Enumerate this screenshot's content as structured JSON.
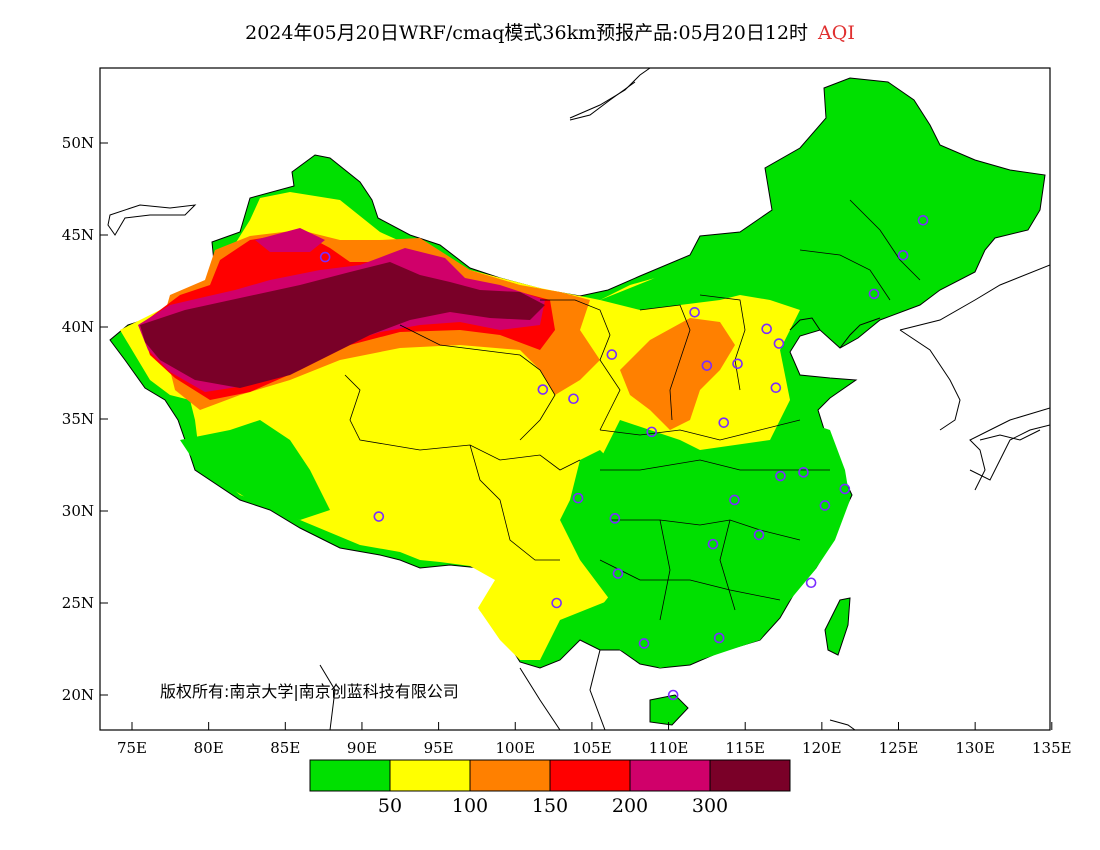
{
  "title": {
    "text": "2024年05月20日WRF/cmaq模式36km预报产品:05月20日12时",
    "variable": "AQI"
  },
  "axes": {
    "x_ticks": [
      "75E",
      "80E",
      "85E",
      "90E",
      "95E",
      "100E",
      "105E",
      "110E",
      "115E",
      "120E",
      "125E",
      "130E",
      "135E"
    ],
    "y_ticks": [
      "50N",
      "45N",
      "40N",
      "35N",
      "30N",
      "25N",
      "20N"
    ]
  },
  "legend": {
    "colors": [
      "#00e000",
      "#ffff00",
      "#ff8000",
      "#ff0000",
      "#d0006a",
      "#7a0028"
    ],
    "labels": [
      "50",
      "100",
      "150",
      "200",
      "300"
    ]
  },
  "copyright": "版权所有:南京大学|南京创蓝科技有限公司",
  "stations": [
    [
      87.6,
      43.8
    ],
    [
      91.1,
      29.7
    ],
    [
      101.8,
      36.6
    ],
    [
      103.8,
      36.1
    ],
    [
      106.3,
      38.5
    ],
    [
      104.1,
      30.7
    ],
    [
      106.5,
      29.6
    ],
    [
      106.7,
      26.6
    ],
    [
      102.7,
      25.0
    ],
    [
      108.4,
      22.8
    ],
    [
      110.3,
      20.0
    ],
    [
      113.3,
      23.1
    ],
    [
      112.9,
      28.2
    ],
    [
      114.3,
      30.6
    ],
    [
      115.9,
      28.7
    ],
    [
      117.3,
      31.9
    ],
    [
      118.8,
      32.1
    ],
    [
      120.2,
      30.3
    ],
    [
      121.5,
      31.2
    ],
    [
      119.3,
      26.1
    ],
    [
      113.6,
      34.8
    ],
    [
      112.5,
      37.9
    ],
    [
      114.5,
      38.0
    ],
    [
      117.0,
      36.7
    ],
    [
      117.2,
      39.1
    ],
    [
      116.4,
      39.9
    ],
    [
      111.7,
      40.8
    ],
    [
      123.4,
      41.8
    ],
    [
      125.3,
      43.9
    ],
    [
      126.6,
      45.8
    ],
    [
      108.9,
      34.3
    ]
  ]
}
